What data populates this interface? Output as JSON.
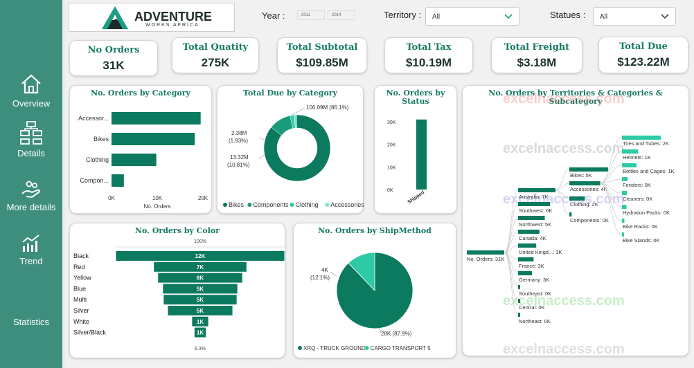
{
  "brand": {
    "name": "ADVENTURE",
    "sub": "WORKS AFRICA"
  },
  "sidebar": {
    "items": [
      {
        "label": "Overview",
        "icon": "home-icon"
      },
      {
        "label": "Details",
        "icon": "hierarchy-icon"
      },
      {
        "label": "More details",
        "icon": "hand-coins-icon"
      },
      {
        "label": "Trend",
        "icon": "trend-chart-icon"
      },
      {
        "label": "Statistics",
        "icon": ""
      }
    ]
  },
  "filters": {
    "year_label": "Year :",
    "year_from": "2011",
    "year_to": "2014",
    "territory_label": "Territory :",
    "territory_value": "All",
    "status_label": "Statues :",
    "status_value": "All"
  },
  "kpis": [
    {
      "title": "No Orders",
      "value": "31K"
    },
    {
      "title": "Total Quatity",
      "value": "275K"
    },
    {
      "title": "Total Subtotal",
      "value": "$109.85M"
    },
    {
      "title": "Total Tax",
      "value": "$10.19M"
    },
    {
      "title": "Total Freight",
      "value": "$3.18M"
    },
    {
      "title": "Total Due",
      "value": "$123.22M"
    }
  ],
  "colors": {
    "primary": "#0b7a5e",
    "light": "#2ecaa6",
    "sidebar": "#3e8e7e"
  },
  "watermark": "excelnaccess.com",
  "chart_data": [
    {
      "id": "orders_by_category",
      "type": "bar",
      "orientation": "horizontal",
      "title": "No. Orders by Category",
      "categories": [
        "Accessor...",
        "Bikes",
        "Clothing",
        "Compon..."
      ],
      "values": [
        19500,
        18200,
        9800,
        2700
      ],
      "xlabel": "No. Orders",
      "xlim": [
        0,
        20000
      ],
      "xticks": [
        "0K",
        "10K",
        "20K"
      ]
    },
    {
      "id": "total_due_by_category",
      "type": "pie",
      "donut": true,
      "title": "Total Due by Category",
      "labels": [
        "Bikes",
        "Components",
        "Clothing",
        "Accessories"
      ],
      "values": [
        106.09,
        13.32,
        2.38,
        1.43
      ],
      "colors": [
        "#0b7a5e",
        "#1a9b7c",
        "#2ecaa6",
        "#7ce5c9"
      ],
      "data_labels": [
        {
          "value": "106.09M (86.1%)"
        },
        {
          "value": "13.32M",
          "pct": "(10.81%)"
        },
        {
          "value": "2.38M",
          "pct": "(1.93%)"
        }
      ]
    },
    {
      "id": "orders_by_status",
      "type": "bar",
      "title": "No. Orders by Status",
      "categories": [
        "Shipped"
      ],
      "values": [
        31000
      ],
      "ylim": [
        0,
        30000
      ],
      "yticks": [
        "0K",
        "10K",
        "20K",
        "30K"
      ]
    },
    {
      "id": "orders_by_color",
      "type": "bar",
      "subtype": "funnel",
      "title": "No. Orders by Color",
      "categories": [
        "Black",
        "Red",
        "Yellow",
        "Blue",
        "Multi",
        "Silver",
        "White",
        "Silver/Black"
      ],
      "values": [
        12000,
        6600,
        6000,
        5300,
        5200,
        4600,
        1150,
        800
      ],
      "labels": [
        "12K",
        "7K",
        "6K",
        "5K",
        "5K",
        "5K",
        "1K",
        "1K"
      ],
      "top_pct": "100%",
      "bottom_pct": "6.3%"
    },
    {
      "id": "orders_by_shipmethod",
      "type": "pie",
      "title": "No. Orders by ShipMethod",
      "labels": [
        "XRQ - TRUCK GROUND",
        "CARGO TRANSPORT 5"
      ],
      "values": [
        27.5,
        3.8
      ],
      "colors": [
        "#0b7a5e",
        "#2ecaa6"
      ],
      "data_labels": [
        {
          "value": "28K (87.9%)"
        },
        {
          "value": "4K",
          "pct": "(12.1%)"
        }
      ]
    },
    {
      "id": "orders_decomposition",
      "type": "table",
      "subtype": "decomposition-tree",
      "title": "No. Orders by Territories & Categories & Subcategory",
      "root": {
        "label": "No. Orders: 31K",
        "value": 31000
      },
      "territories": [
        {
          "label": "Australia: 7K",
          "value": 7000
        },
        {
          "label": "Southwest: 6K",
          "value": 6000
        },
        {
          "label": "Northwest: 5K",
          "value": 5000
        },
        {
          "label": "Canada: 4K",
          "value": 4000
        },
        {
          "label": "United Kingd...: 3K",
          "value": 3400
        },
        {
          "label": "France: 3K",
          "value": 2900
        },
        {
          "label": "Germany: 3K",
          "value": 2600
        },
        {
          "label": "Southeast: 0K",
          "value": 300
        },
        {
          "label": "Central: 0K",
          "value": 250
        },
        {
          "label": "Northeast: 0K",
          "value": 200
        }
      ],
      "categories": [
        {
          "label": "Bikes: 5K",
          "value": 5000
        },
        {
          "label": "Accessories: 4K",
          "value": 4000
        },
        {
          "label": "Clothing: 2K",
          "value": 2000
        },
        {
          "label": "Components: 0K",
          "value": 300
        }
      ],
      "subcategories": [
        {
          "label": "Tires and Tubes: 2K",
          "value": 2400
        },
        {
          "label": "Helmets: 1K",
          "value": 1000
        },
        {
          "label": "Bottles and Cages: 1K",
          "value": 900
        },
        {
          "label": "Fenders: 0K",
          "value": 350
        },
        {
          "label": "Cleaners: 0K",
          "value": 300
        },
        {
          "label": "Hydration Packs: 0K",
          "value": 280
        },
        {
          "label": "Bike Racks: 0K",
          "value": 150
        },
        {
          "label": "Bike Stands: 0K",
          "value": 120
        }
      ]
    }
  ]
}
